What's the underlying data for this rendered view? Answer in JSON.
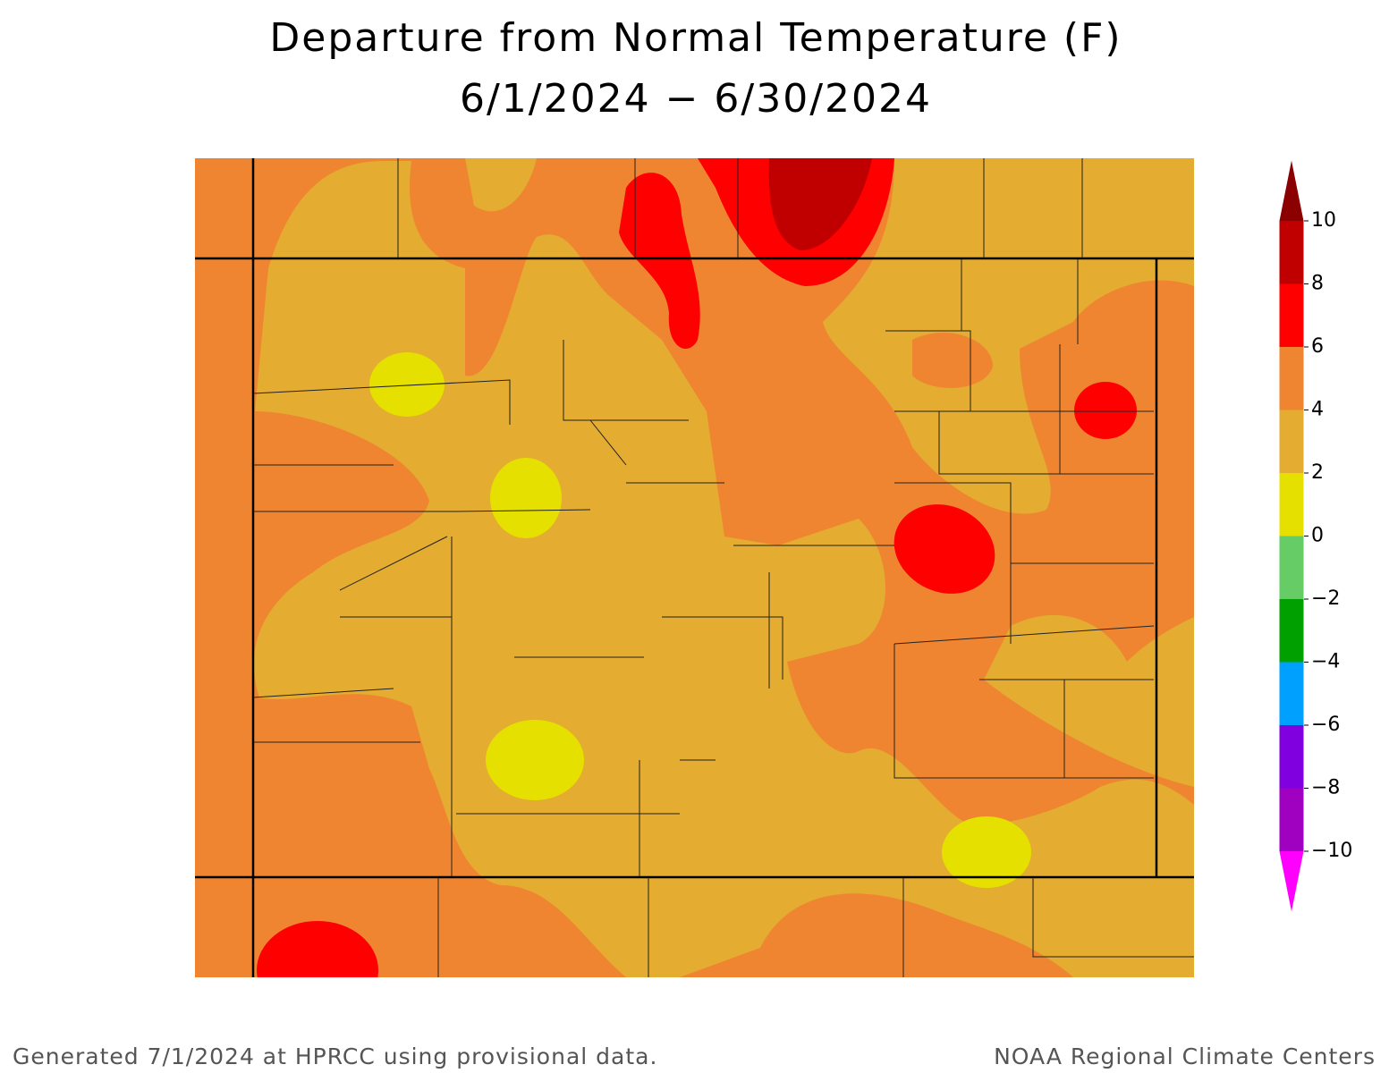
{
  "title": "Departure from Normal Temperature (F)",
  "subtitle": "6/1/2024 − 6/30/2024",
  "colorbar": {
    "ticks": [
      10,
      8,
      6,
      4,
      2,
      0,
      {
        "value": -2,
        "label": "−2"
      },
      {
        "value": -4,
        "label": "−4"
      },
      {
        "value": -6,
        "label": "−6"
      },
      {
        "value": -8,
        "label": "−8"
      },
      {
        "value": -10,
        "label": "−10"
      }
    ],
    "colors": [
      "#8b0000",
      "#c00000",
      "#ff0000",
      "#ef8530",
      "#e4ac30",
      "#e6e000",
      "#66cc66",
      "#00a000",
      "#00a0ff",
      "#8000e0",
      "#a000c0",
      "#ff00ff"
    ]
  },
  "footer": {
    "left": "Generated 7/1/2024 at HPRCC using provisional data.",
    "right": "NOAA Regional Climate Centers"
  }
}
